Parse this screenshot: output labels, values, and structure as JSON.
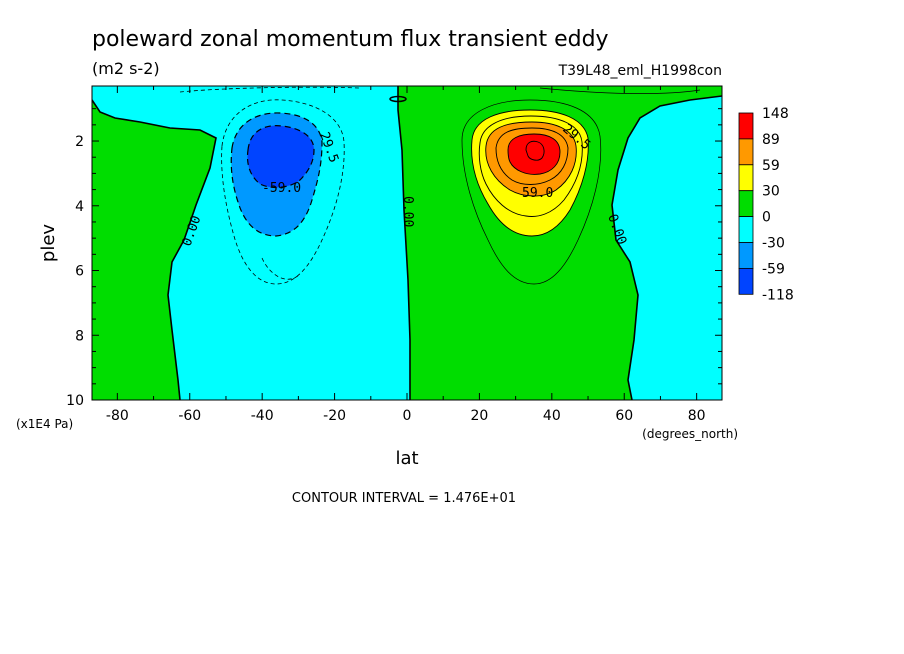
{
  "chart_data": {
    "type": "heatmap",
    "title": "poleward zonal momentum flux transient eddy",
    "units": "(m2 s-2)",
    "dataset": "T39L48_eml_H1998con",
    "xlabel": "lat",
    "x_units": "(degrees_north)",
    "ylabel": "plev",
    "y_units": "(x1E4 Pa)",
    "xlim": [
      -87,
      87
    ],
    "ylim": [
      10,
      0.3
    ],
    "x_ticks": [
      "-80",
      "-60",
      "-40",
      "-20",
      "0",
      "20",
      "40",
      "60",
      "80"
    ],
    "y_ticks": [
      "2",
      "4",
      "6",
      "8",
      "10"
    ],
    "contour_interval_text": "CONTOUR INTERVAL = 1.476E+01",
    "contour_labels": [
      "29.5",
      "-59.0",
      "0.00",
      "0.00",
      "29.5",
      "59.0",
      "0.00"
    ],
    "colorbar": {
      "labels": [
        "148",
        "89",
        "59",
        "30",
        "0",
        "-30",
        "-59",
        "-118"
      ],
      "colors": [
        "#ff0000",
        "#ff9900",
        "#ffff00",
        "#00dd00",
        "#00ffff",
        "#0099ff",
        "#0044ff"
      ]
    },
    "features": [
      {
        "name": "southern-jet-flux-minimum",
        "lat": -36,
        "plev": 2.5,
        "value": -80
      },
      {
        "name": "northern-jet-flux-maximum",
        "lat": 36,
        "plev": 2.3,
        "value": 110
      }
    ]
  }
}
